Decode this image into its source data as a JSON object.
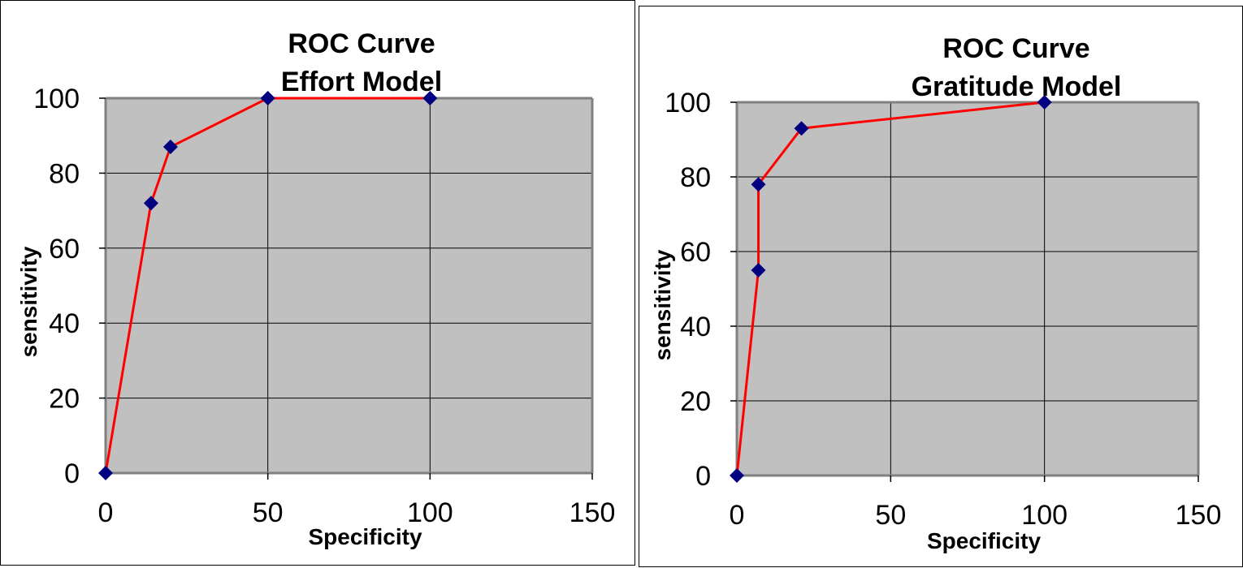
{
  "chart_data": [
    {
      "type": "line",
      "title": [
        "ROC Curve",
        "Effort Model"
      ],
      "xlabel": "Specificity",
      "ylabel": "sensitivity",
      "xlim": [
        0,
        150
      ],
      "ylim": [
        0,
        100
      ],
      "xticks": [
        0,
        50,
        100,
        150
      ],
      "yticks": [
        0,
        20,
        40,
        60,
        80,
        100
      ],
      "grid": true,
      "background": "#c0c0c0",
      "line_color": "#ff0000",
      "marker_color": "#000080",
      "marker": "diamond",
      "series": [
        {
          "x": [
            0,
            14,
            20,
            50,
            100
          ],
          "y": [
            0,
            72,
            87,
            100,
            100
          ]
        }
      ]
    },
    {
      "type": "line",
      "title": [
        "ROC Curve",
        "Gratitude Model"
      ],
      "xlabel": "Specificity",
      "ylabel": "sensitivity",
      "xlim": [
        0,
        150
      ],
      "ylim": [
        0,
        100
      ],
      "xticks": [
        0,
        50,
        100,
        150
      ],
      "yticks": [
        0,
        20,
        40,
        60,
        80,
        100
      ],
      "grid": true,
      "background": "#c0c0c0",
      "line_color": "#ff0000",
      "marker_color": "#000080",
      "marker": "diamond",
      "series": [
        {
          "x": [
            0,
            7,
            7,
            21,
            100
          ],
          "y": [
            0,
            55,
            78,
            93,
            100
          ]
        }
      ]
    }
  ]
}
